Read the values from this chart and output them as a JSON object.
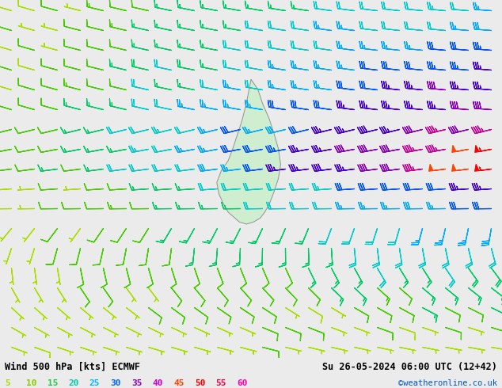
{
  "title_left": "Wind 500 hPa [kts] ECMWF",
  "title_right": "Su 26-05-2024 06:00 UTC (12+42)",
  "credit": "©weatheronline.co.uk",
  "legend_values": [
    5,
    10,
    15,
    20,
    25,
    30,
    35,
    40,
    45,
    50,
    55,
    60
  ],
  "legend_colors": [
    "#aadd00",
    "#88cc00",
    "#22cc44",
    "#00ccaa",
    "#00bbff",
    "#0066ff",
    "#8800cc",
    "#cc00cc",
    "#ff4400",
    "#ff0000",
    "#ff0044",
    "#ff00aa"
  ],
  "bg_color": "#ebebeb",
  "nx": 22,
  "ny": 18,
  "seed": 42
}
